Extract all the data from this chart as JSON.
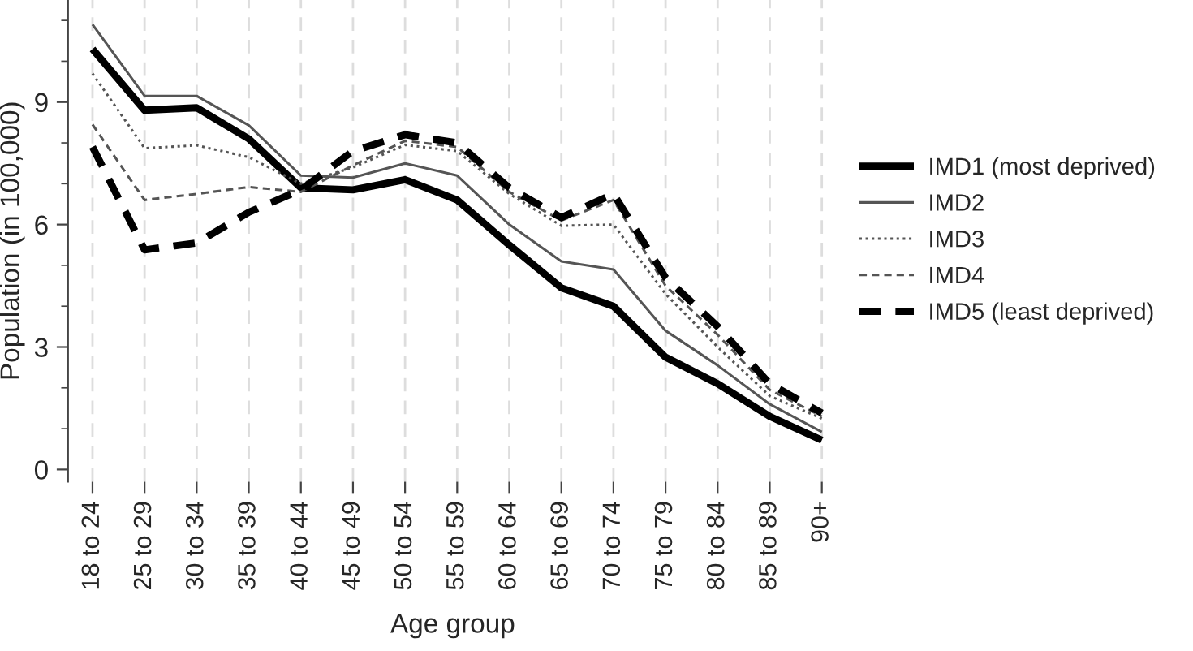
{
  "chart_data": {
    "type": "line",
    "xlabel": "Age group",
    "ylabel": "Population (in 100,000)",
    "categories": [
      "18 to 24",
      "25 to 29",
      "30 to 34",
      "35 to 39",
      "40 to 44",
      "45 to 49",
      "50 to 54",
      "55 to 59",
      "60 to 64",
      "65 to 69",
      "70 to 74",
      "75 to 79",
      "80 to 84",
      "85 to 89",
      "90+"
    ],
    "series": [
      {
        "name": "IMD1 (most deprived)",
        "color": "#000000",
        "line_style": "solid",
        "values": [
          10.3,
          8.8,
          8.86,
          8.1,
          6.9,
          6.85,
          7.1,
          6.6,
          5.5,
          4.45,
          4.0,
          2.75,
          2.1,
          1.3,
          0.72
        ]
      },
      {
        "name": "IMD2",
        "color": "#555555",
        "line_style": "solid",
        "values": [
          10.9,
          9.15,
          9.15,
          8.43,
          7.2,
          7.15,
          7.5,
          7.2,
          6.0,
          5.1,
          4.9,
          3.4,
          2.55,
          1.6,
          0.92
        ]
      },
      {
        "name": "IMD3",
        "color": "#555555",
        "line_style": "dotted",
        "values": [
          9.7,
          7.87,
          7.94,
          7.65,
          7.0,
          7.4,
          7.95,
          7.8,
          6.75,
          5.97,
          6.0,
          4.3,
          3.0,
          1.8,
          1.25
        ]
      },
      {
        "name": "IMD4",
        "color": "#555555",
        "line_style": "dashed",
        "values": [
          8.45,
          6.6,
          6.75,
          6.92,
          6.8,
          7.45,
          8.05,
          7.9,
          6.8,
          6.1,
          6.6,
          4.5,
          3.3,
          1.95,
          1.3
        ]
      },
      {
        "name": "IMD5 (least deprived)",
        "color": "#000000",
        "line_style": "dashed",
        "values": [
          7.9,
          5.38,
          5.55,
          6.3,
          6.85,
          7.8,
          8.2,
          8.0,
          6.9,
          6.17,
          6.75,
          4.7,
          3.5,
          2.1,
          1.38
        ]
      }
    ],
    "ylim": [
      -0.3,
      11.5
    ],
    "yticks": [
      0,
      3,
      6,
      9
    ],
    "grid": "x",
    "legend": "right",
    "marker": "none"
  }
}
